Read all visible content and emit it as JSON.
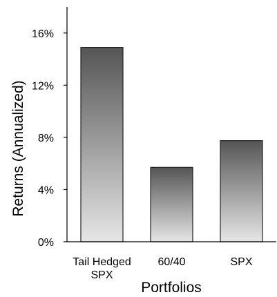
{
  "chart_data": {
    "type": "bar",
    "categories": [
      "Tail Hedged SPX",
      "60/40",
      "SPX"
    ],
    "category_label_lines": [
      [
        "Tail Hedged",
        "SPX"
      ],
      [
        "60/40"
      ],
      [
        "SPX"
      ]
    ],
    "values": [
      14.9,
      5.7,
      7.75
    ],
    "xlabel": "Portfolios",
    "ylabel": "Returns (Annualized)",
    "ylim": [
      0,
      18
    ],
    "yticks": [
      0,
      4,
      8,
      12,
      16
    ],
    "ytick_labels": [
      "0%",
      "4%",
      "8%",
      "12%",
      "16%"
    ],
    "grid": false,
    "legend": "none",
    "bar_gradient": [
      "#555555",
      "#e6e6e6"
    ],
    "bar_stroke": "#222222"
  }
}
